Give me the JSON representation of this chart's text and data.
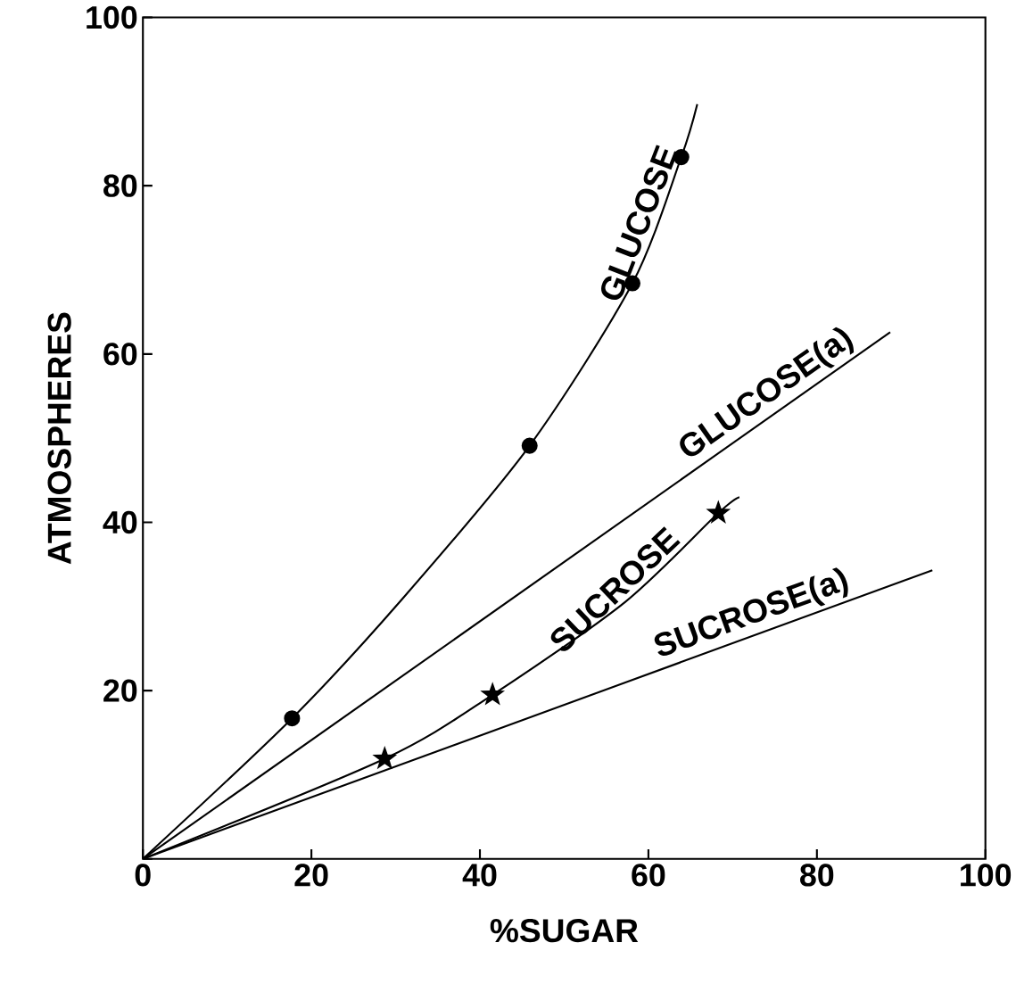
{
  "chart_data": {
    "type": "line",
    "xlabel": "%SUGAR",
    "ylabel": "ATMOSPHERES",
    "xlim": [
      0,
      100
    ],
    "ylim": [
      0,
      100
    ],
    "xticks": [
      0,
      20,
      40,
      60,
      80,
      100
    ],
    "yticks": [
      {
        "value": 0,
        "label": null
      },
      20,
      40,
      60,
      80,
      100
    ],
    "grid": false,
    "line_style": "solid",
    "series": [
      {
        "name": "GLUCOSE",
        "color": "#000000",
        "marker": "none",
        "x": [
          0,
          17.7,
          30.8,
          45.9,
          58.1,
          63.9,
          65.8
        ],
        "values": [
          0,
          16.7,
          30.9,
          49.1,
          68.4,
          83.4,
          89.7
        ]
      },
      {
        "type": "scatter",
        "color": "#000000",
        "marker": "circle",
        "x": [
          17.7,
          45.9,
          58.1,
          63.9
        ],
        "values": [
          16.7,
          49.1,
          68.4,
          83.4
        ]
      },
      {
        "name": "GLUCOSE(a)",
        "color": "#000000",
        "marker": "none",
        "x": [
          0,
          88.7
        ],
        "values": [
          0,
          62.6
        ]
      },
      {
        "name": "SUCROSE",
        "color": "#000000",
        "marker": "none",
        "x": [
          0,
          28.7,
          41.5,
          57.2,
          68.3,
          70.8
        ],
        "values": [
          0,
          11.9,
          19.5,
          30.5,
          41.1,
          43.0
        ]
      },
      {
        "type": "scatter",
        "color": "#000000",
        "marker": "star",
        "x": [
          28.7,
          41.5,
          68.3
        ],
        "values": [
          11.9,
          19.5,
          41.1
        ]
      },
      {
        "name": "SUCROSE(a)",
        "color": "#000000",
        "marker": "none",
        "x": [
          0,
          93.7
        ],
        "values": [
          0,
          34.3
        ]
      }
    ]
  }
}
